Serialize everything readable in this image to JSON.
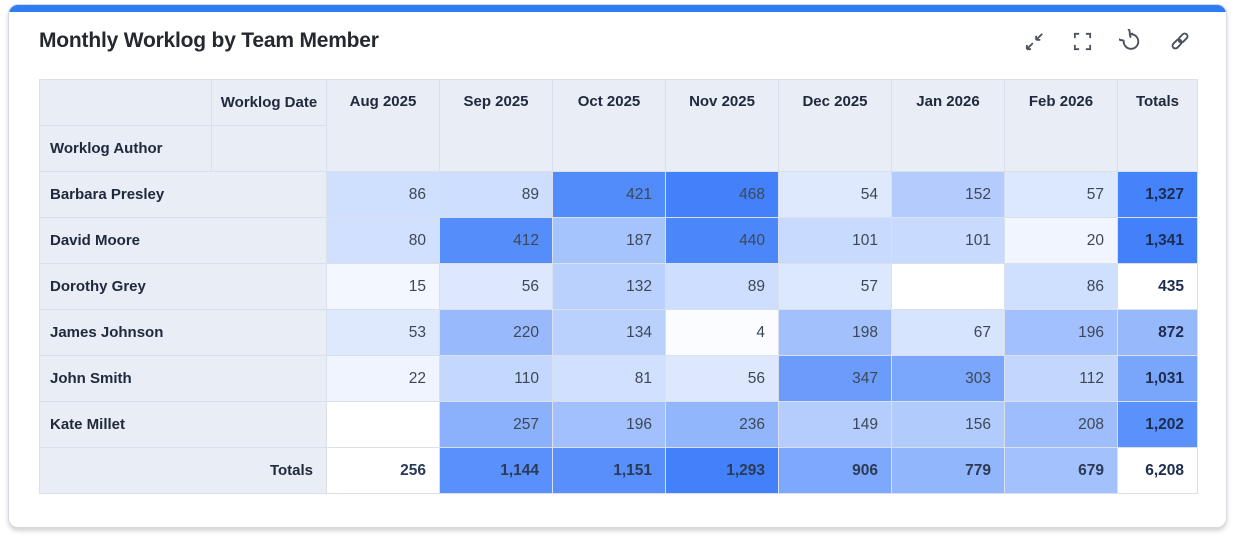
{
  "title": "Monthly Worklog by Team Member",
  "toolbar": {
    "buttons": [
      {
        "label": "collapse",
        "icon": "collapse-arrows-icon"
      },
      {
        "label": "fullscreen",
        "icon": "fullscreen-brackets-icon"
      },
      {
        "label": "reset",
        "icon": "reset-refresh-icon"
      },
      {
        "label": "link",
        "icon": "link-chain-icon"
      }
    ]
  },
  "chart_data": {
    "type": "heatmap",
    "col_axis_label": "Worklog Date",
    "row_axis_label": "Worklog Author",
    "columns": [
      "Aug 2025",
      "Sep 2025",
      "Oct 2025",
      "Nov 2025",
      "Dec 2025",
      "Jan 2026",
      "Feb 2026"
    ],
    "totals_column_label": "Totals",
    "totals_row_label": "Totals",
    "rows": [
      {
        "name": "Barbara Presley",
        "values": [
          86,
          89,
          421,
          468,
          54,
          152,
          57
        ],
        "total": 1327
      },
      {
        "name": "David Moore",
        "values": [
          80,
          412,
          187,
          440,
          101,
          101,
          20
        ],
        "total": 1341
      },
      {
        "name": "Dorothy Grey",
        "values": [
          15,
          56,
          132,
          89,
          57,
          null,
          86
        ],
        "total": 435
      },
      {
        "name": "James Johnson",
        "values": [
          53,
          220,
          134,
          4,
          198,
          67,
          196
        ],
        "total": 872
      },
      {
        "name": "John Smith",
        "values": [
          22,
          110,
          81,
          56,
          347,
          303,
          112
        ],
        "total": 1031
      },
      {
        "name": "Kate Millet",
        "values": [
          null,
          257,
          196,
          236,
          149,
          156,
          208
        ],
        "total": 1202
      }
    ],
    "column_totals": [
      256,
      1144,
      1151,
      1293,
      906,
      779,
      679
    ],
    "grand_total": 6208,
    "heat": {
      "base_color": "#FFFFFF",
      "max_color": "#4381FA",
      "gamma": 0.8,
      "body_scale": {
        "min": 0,
        "max": 468
      },
      "row_totals_scale": {
        "min": 435,
        "max": 1341
      },
      "column_totals_scale": {
        "min": 256,
        "max": 1293
      }
    },
    "layout": {
      "legend": false,
      "grid": true
    }
  },
  "colors": {
    "accent_bar": "#2E7DF5",
    "header_bg": "#E9EDF6",
    "cell_border": "#DAE0EB",
    "card_border": "#D6DAE0",
    "title_text": "#24292F",
    "label_text": "#202A3C",
    "value_text": "#3D4757",
    "total_text": "#1E2C4F",
    "icon": "#4B525B"
  }
}
